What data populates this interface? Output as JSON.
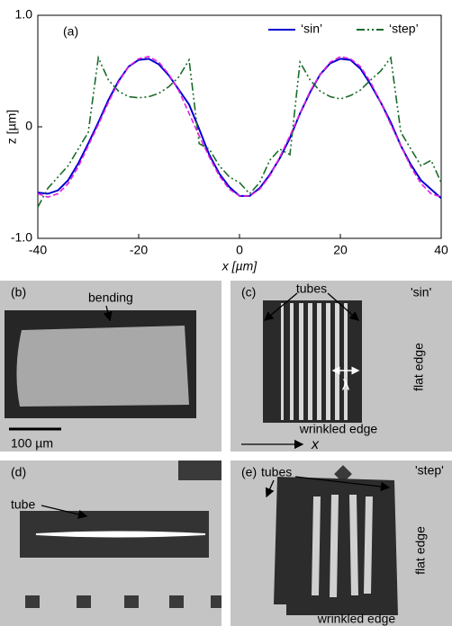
{
  "chart_data": {
    "type": "line",
    "panel_label": "(a)",
    "xlabel": "x [µm]",
    "ylabel": "z [µm]",
    "xlim": [
      -40,
      40
    ],
    "ylim": [
      -1,
      1
    ],
    "xticks": [
      -40,
      -20,
      0,
      20,
      40
    ],
    "yticks": [
      {
        "value": -1,
        "label": "-1.0"
      },
      0,
      {
        "value": 1,
        "label": "1.0"
      }
    ],
    "x": [
      -40,
      -38,
      -36,
      -34,
      -32,
      -30,
      -28,
      -26,
      -24,
      -22,
      -20,
      -18,
      -16,
      -14,
      -12,
      -10,
      -8,
      -6,
      -4,
      -2,
      0,
      2,
      4,
      6,
      8,
      10,
      12,
      14,
      16,
      18,
      20,
      22,
      24,
      26,
      28,
      30,
      32,
      34,
      36,
      38,
      40
    ],
    "series": [
      {
        "name": "‘sin’",
        "color": "#0000d0",
        "values": [
          -0.59,
          -0.6,
          -0.57,
          -0.48,
          -0.33,
          -0.15,
          0.04,
          0.24,
          0.41,
          0.54,
          0.6,
          0.61,
          0.56,
          0.46,
          0.33,
          0.2,
          -0.02,
          -0.25,
          -0.42,
          -0.54,
          -0.62,
          -0.62,
          -0.55,
          -0.43,
          -0.28,
          -0.1,
          0.12,
          0.31,
          0.47,
          0.57,
          0.61,
          0.6,
          0.52,
          0.38,
          0.22,
          0.04,
          -0.17,
          -0.34,
          -0.48,
          -0.56,
          -0.64
        ]
      },
      {
        "name": "‘step’",
        "color": "#1a6b2a",
        "values": [
          -0.72,
          -0.55,
          -0.45,
          -0.35,
          -0.2,
          -0.05,
          0.62,
          0.42,
          0.32,
          0.27,
          0.26,
          0.27,
          0.3,
          0.36,
          0.45,
          0.6,
          -0.15,
          -0.2,
          -0.35,
          -0.45,
          -0.5,
          -0.6,
          -0.5,
          -0.3,
          -0.2,
          -0.25,
          0.58,
          0.42,
          0.32,
          0.27,
          0.25,
          0.28,
          0.33,
          0.42,
          0.5,
          0.62,
          -0.05,
          -0.2,
          -0.35,
          -0.3,
          -0.5
        ]
      },
      {
        "color": "#e020e0",
        "values": [
          -0.6,
          -0.63,
          -0.6,
          -0.51,
          -0.36,
          -0.17,
          0.02,
          0.22,
          0.4,
          0.54,
          0.61,
          0.63,
          0.58,
          0.47,
          0.32,
          0.12,
          -0.08,
          -0.27,
          -0.44,
          -0.56,
          -0.62,
          -0.62,
          -0.56,
          -0.44,
          -0.27,
          -0.08,
          0.12,
          0.32,
          0.47,
          0.58,
          0.63,
          0.61,
          0.54,
          0.4,
          0.22,
          0.02,
          -0.17,
          -0.36,
          -0.51,
          -0.6,
          -0.63
        ]
      }
    ]
  },
  "panels": {
    "b": {
      "label": "(b)",
      "arrow_label": "bending",
      "scale_bar": "100 µm"
    },
    "c": {
      "label": "(c)",
      "tag": "'sin'",
      "arrow_label": "tubes",
      "period": "λ",
      "side_label": "flat edge",
      "bottom_label": "wrinkled edge",
      "axis": "x"
    },
    "d": {
      "label": "(d)",
      "arrow_label": "tube"
    },
    "e": {
      "label": "(e)",
      "tag": "'step'",
      "arrow_label": "tubes",
      "side_label": "flat edge",
      "bottom_label": "wrinkled edge"
    }
  }
}
